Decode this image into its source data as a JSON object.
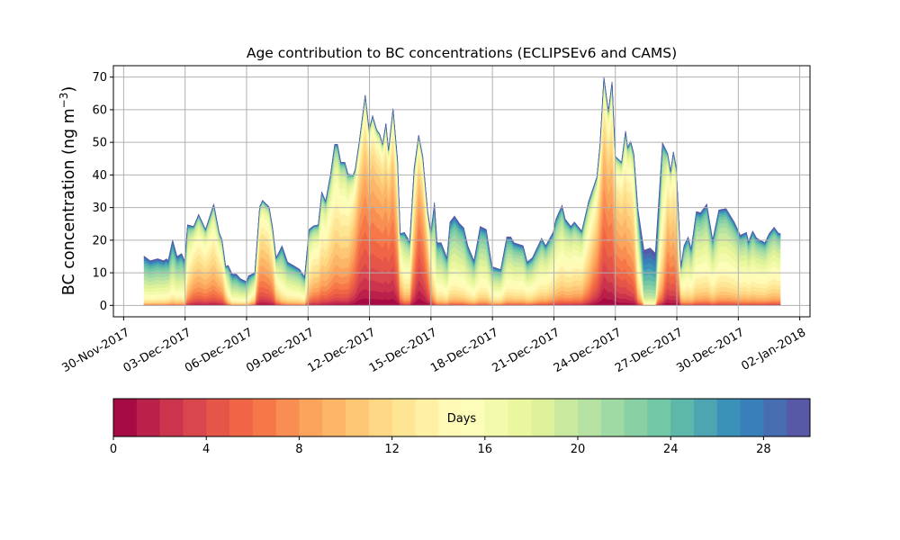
{
  "chart_data": {
    "type": "area",
    "title": "Age contribution to BC concentrations (ECLIPSEv6 and CAMS)",
    "ylabel": "BC concentration (ng m",
    "ylabel_sup": "−3",
    "ylabel_close": ")",
    "xlabel": "",
    "ylim": [
      -3.5,
      73.5
    ],
    "yticks": [
      0,
      10,
      20,
      30,
      40,
      50,
      60,
      70
    ],
    "x_ticks": [
      {
        "day": -1,
        "label": "30-Nov-2017"
      },
      {
        "day": 2,
        "label": "03-Dec-2017"
      },
      {
        "day": 5,
        "label": "06-Dec-2017"
      },
      {
        "day": 8,
        "label": "09-Dec-2017"
      },
      {
        "day": 11,
        "label": "12-Dec-2017"
      },
      {
        "day": 14,
        "label": "15-Dec-2017"
      },
      {
        "day": 17,
        "label": "18-Dec-2017"
      },
      {
        "day": 20,
        "label": "21-Dec-2017"
      },
      {
        "day": 23,
        "label": "24-Dec-2017"
      },
      {
        "day": 26,
        "label": "27-Dec-2017"
      },
      {
        "day": 29,
        "label": "30-Dec-2017"
      },
      {
        "day": 32,
        "label": "02-Jan-2018"
      }
    ],
    "x_units": "days since 01-Dec-2017",
    "xlim": [
      -1.5,
      32.5
    ],
    "grid": true,
    "total_series": [
      [
        0,
        15.1
      ],
      [
        0.3,
        13.7
      ],
      [
        0.66,
        14.3
      ],
      [
        0.95,
        13.7
      ],
      [
        1.1,
        14.3
      ],
      [
        1.17,
        13.7
      ],
      [
        1.39,
        20.1
      ],
      [
        1.61,
        15
      ],
      [
        1.83,
        15.9
      ],
      [
        1.98,
        13.7
      ],
      [
        2.12,
        24.7
      ],
      [
        2.42,
        24.2
      ],
      [
        2.66,
        27.9
      ],
      [
        3.0,
        23.3
      ],
      [
        3.4,
        31.1
      ],
      [
        3.66,
        22.4
      ],
      [
        3.8,
        20.1
      ],
      [
        3.98,
        11.9
      ],
      [
        4.1,
        12.3
      ],
      [
        4.3,
        9.6
      ],
      [
        4.5,
        9.6
      ],
      [
        4.7,
        8.2
      ],
      [
        5.0,
        7.3
      ],
      [
        5.1,
        9.1
      ],
      [
        5.4,
        10
      ],
      [
        5.64,
        30.2
      ],
      [
        5.78,
        32.2
      ],
      [
        6.1,
        30.2
      ],
      [
        6.27,
        23.8
      ],
      [
        6.44,
        14.6
      ],
      [
        6.73,
        18.3
      ],
      [
        7.0,
        13.3
      ],
      [
        7.38,
        11.9
      ],
      [
        7.6,
        11
      ],
      [
        7.83,
        8.7
      ],
      [
        8.05,
        23.3
      ],
      [
        8.27,
        24.4
      ],
      [
        8.5,
        24.7
      ],
      [
        8.67,
        34.8
      ],
      [
        8.86,
        32
      ],
      [
        9.1,
        40.3
      ],
      [
        9.3,
        49.4
      ],
      [
        9.44,
        49.4
      ],
      [
        9.6,
        43.9
      ],
      [
        9.8,
        43.9
      ],
      [
        9.95,
        40.3
      ],
      [
        10.2,
        40
      ],
      [
        10.3,
        41.6
      ],
      [
        10.5,
        50.3
      ],
      [
        10.79,
        64.5
      ],
      [
        10.98,
        53.9
      ],
      [
        11.15,
        58.1
      ],
      [
        11.35,
        53.9
      ],
      [
        11.5,
        52.5
      ],
      [
        11.64,
        49.4
      ],
      [
        11.8,
        55.8
      ],
      [
        11.93,
        47.6
      ],
      [
        12.15,
        60.4
      ],
      [
        12.37,
        44.8
      ],
      [
        12.5,
        22
      ],
      [
        12.7,
        22.4
      ],
      [
        12.96,
        19.6
      ],
      [
        13.18,
        42.1
      ],
      [
        13.4,
        52.2
      ],
      [
        13.6,
        45.7
      ],
      [
        13.84,
        28.8
      ],
      [
        14.0,
        22.4
      ],
      [
        14.17,
        31.6
      ],
      [
        14.3,
        19.2
      ],
      [
        14.5,
        19.2
      ],
      [
        14.78,
        14.6
      ],
      [
        14.93,
        25.6
      ],
      [
        15.15,
        27.4
      ],
      [
        15.4,
        25.1
      ],
      [
        15.6,
        23.8
      ],
      [
        15.8,
        18.3
      ],
      [
        16.1,
        13.7
      ],
      [
        16.4,
        24.2
      ],
      [
        16.7,
        23.3
      ],
      [
        16.98,
        11.9
      ],
      [
        17.4,
        11
      ],
      [
        17.7,
        21
      ],
      [
        17.9,
        21
      ],
      [
        18.05,
        19.2
      ],
      [
        18.5,
        18.3
      ],
      [
        18.7,
        13.3
      ],
      [
        18.95,
        14.6
      ],
      [
        19.4,
        20.6
      ],
      [
        19.6,
        18.3
      ],
      [
        19.96,
        22.4
      ],
      [
        20.1,
        26.5
      ],
      [
        20.4,
        30.7
      ],
      [
        20.55,
        26.5
      ],
      [
        20.83,
        24.2
      ],
      [
        21.0,
        25.6
      ],
      [
        21.36,
        22.8
      ],
      [
        21.7,
        32
      ],
      [
        22.1,
        39.4
      ],
      [
        22.25,
        49.4
      ],
      [
        22.44,
        70
      ],
      [
        22.66,
        59.5
      ],
      [
        22.84,
        68.6
      ],
      [
        23.0,
        45.7
      ],
      [
        23.3,
        43.9
      ],
      [
        23.5,
        53.5
      ],
      [
        23.6,
        48.5
      ],
      [
        23.75,
        50.3
      ],
      [
        23.9,
        46.6
      ],
      [
        24.1,
        29.7
      ],
      [
        24.4,
        16.9
      ],
      [
        24.7,
        17.6
      ],
      [
        24.95,
        16
      ],
      [
        25.3,
        49.9
      ],
      [
        25.55,
        46.6
      ],
      [
        25.7,
        41.1
      ],
      [
        25.83,
        47.1
      ],
      [
        25.98,
        42.1
      ],
      [
        26.2,
        11.9
      ],
      [
        26.35,
        18.3
      ],
      [
        26.55,
        21
      ],
      [
        26.7,
        17.4
      ],
      [
        26.95,
        28.8
      ],
      [
        27.16,
        28.4
      ],
      [
        27.46,
        31.1
      ],
      [
        27.75,
        20.1
      ],
      [
        28.05,
        29.3
      ],
      [
        28.4,
        29.7
      ],
      [
        28.8,
        25.6
      ],
      [
        29.1,
        21.5
      ],
      [
        29.4,
        22.4
      ],
      [
        29.5,
        19.6
      ],
      [
        29.7,
        22.8
      ],
      [
        29.9,
        20.6
      ],
      [
        30.3,
        19.2
      ],
      [
        30.5,
        22
      ],
      [
        30.75,
        24
      ],
      [
        30.95,
        22.2
      ],
      [
        31.05,
        22
      ]
    ],
    "median_age_days": [
      [
        0,
        20
      ],
      [
        2,
        19
      ],
      [
        2.2,
        12
      ],
      [
        3.9,
        12
      ],
      [
        4.2,
        20
      ],
      [
        5.3,
        19
      ],
      [
        5.6,
        10
      ],
      [
        6.3,
        11
      ],
      [
        6.6,
        18
      ],
      [
        7.9,
        18
      ],
      [
        8.1,
        13
      ],
      [
        9.9,
        12
      ],
      [
        10.5,
        7
      ],
      [
        12.3,
        7
      ],
      [
        12.6,
        16
      ],
      [
        13.0,
        15
      ],
      [
        13.3,
        6
      ],
      [
        13.8,
        8
      ],
      [
        14.2,
        18
      ],
      [
        17,
        18
      ],
      [
        19,
        17
      ],
      [
        21.5,
        14
      ],
      [
        22.4,
        7
      ],
      [
        23.3,
        9
      ],
      [
        24.0,
        11
      ],
      [
        24.3,
        26
      ],
      [
        25.1,
        26
      ],
      [
        25.4,
        9
      ],
      [
        26.0,
        10
      ],
      [
        26.3,
        17
      ],
      [
        31.05,
        16
      ]
    ],
    "colorbar": {
      "label": "Days",
      "range": [
        0,
        30
      ],
      "levels": 30,
      "ticks": [
        0,
        4,
        8,
        12,
        16,
        20,
        24,
        28
      ],
      "colormap": "Spectral"
    },
    "colormap_anchors": [
      "#9e0142",
      "#d53e4f",
      "#f46d43",
      "#fdae61",
      "#fee08b",
      "#ffffbf",
      "#e6f598",
      "#abdda4",
      "#66c2a5",
      "#3288bd",
      "#5e4fa2"
    ]
  }
}
